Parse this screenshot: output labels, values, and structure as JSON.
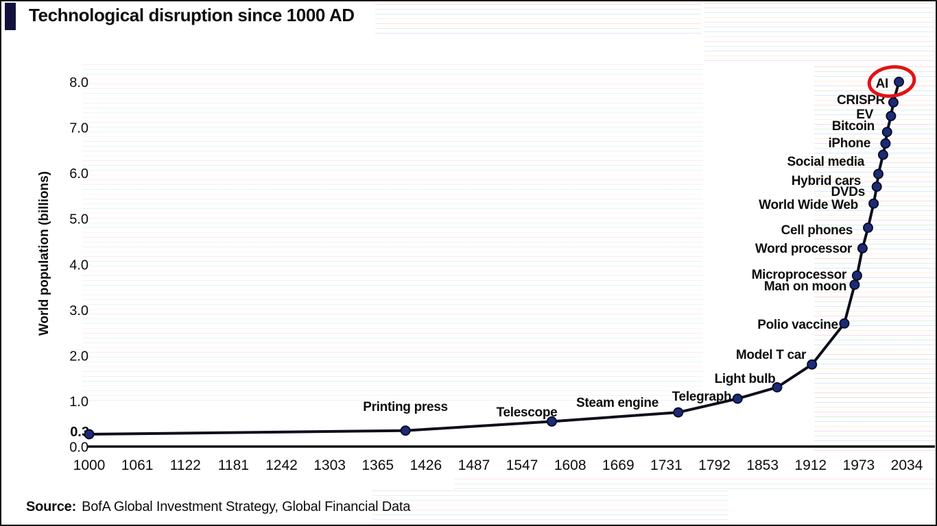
{
  "header": {
    "title": "Technological disruption since 1000 AD"
  },
  "footer": {
    "source_label": "Source:",
    "source_text": "BofA Global Investment Strategy, Global Financial Data"
  },
  "colors": {
    "accent_bar": "#12123c",
    "line": "#0c0e1c",
    "marker_fill": "#1c2b78",
    "marker_edge": "#090d26",
    "axis": "#101010",
    "text": "#0d0d0d",
    "highlight_oval": "#e21317"
  },
  "chart_data": {
    "type": "line",
    "title": "Technological disruption since 1000 AD",
    "xlabel": "",
    "ylabel": "World population (billions)",
    "grid": false,
    "legend": false,
    "x_axis": {
      "min": 1000,
      "max": 2034,
      "tick_labels": [
        "1000",
        "1061",
        "1122",
        "1181",
        "1242",
        "1303",
        "1365",
        "1426",
        "1487",
        "1547",
        "1608",
        "1669",
        "1731",
        "1792",
        "1853",
        "1912",
        "1973",
        "2034"
      ]
    },
    "y_axis": {
      "min": 0.0,
      "max": 8.6,
      "tick_labels": [
        "0.0",
        "1.0",
        "2.0",
        "3.0",
        "4.0",
        "5.0",
        "6.0",
        "7.0",
        "8.0"
      ],
      "special_tick": {
        "text": "0.3",
        "value": 0.3,
        "bold": true
      }
    },
    "series": [
      {
        "name": "World population",
        "points": [
          {
            "year": 1000,
            "population": 0.27,
            "label": ""
          },
          {
            "year": 1400,
            "population": 0.35,
            "label": "Printing press"
          },
          {
            "year": 1585,
            "population": 0.55,
            "label": "Telescope"
          },
          {
            "year": 1745,
            "population": 0.75,
            "label": "Steam engine"
          },
          {
            "year": 1820,
            "population": 1.05,
            "label": "Telegraph"
          },
          {
            "year": 1870,
            "population": 1.3,
            "label": "Light bulb"
          },
          {
            "year": 1914,
            "population": 1.8,
            "label": "Model T car"
          },
          {
            "year": 1955,
            "population": 2.7,
            "label": "Polio vaccine"
          },
          {
            "year": 1968,
            "population": 3.55,
            "label": "Man on moon"
          },
          {
            "year": 1971,
            "population": 3.75,
            "label": "Microprocessor"
          },
          {
            "year": 1978,
            "population": 4.35,
            "label": "Word processor"
          },
          {
            "year": 1985,
            "population": 4.8,
            "label": "Cell phones"
          },
          {
            "year": 1992,
            "population": 5.33,
            "label": "World Wide Web"
          },
          {
            "year": 1996,
            "population": 5.7,
            "label": "DVDs"
          },
          {
            "year": 1998,
            "population": 5.98,
            "label": "Hybrid cars"
          },
          {
            "year": 2004,
            "population": 6.4,
            "label": "Social media"
          },
          {
            "year": 2007,
            "population": 6.65,
            "label": "iPhone"
          },
          {
            "year": 2009,
            "population": 6.9,
            "label": "Bitcoin"
          },
          {
            "year": 2014,
            "population": 7.25,
            "label": "EV"
          },
          {
            "year": 2017,
            "population": 7.55,
            "label": "CRISPR"
          },
          {
            "year": 2024,
            "population": 8.0,
            "label": "AI"
          }
        ]
      }
    ],
    "highlight": {
      "label": "AI",
      "shape": "ellipse",
      "color": "#e21317"
    }
  }
}
